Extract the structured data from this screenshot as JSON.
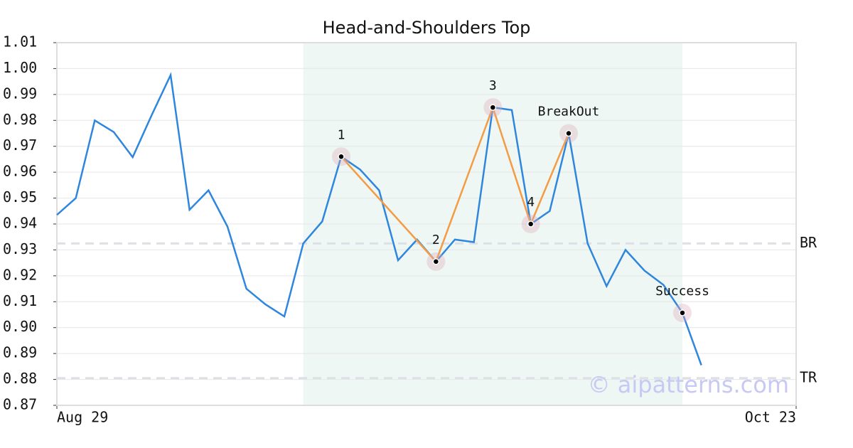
{
  "chart_data": {
    "type": "line",
    "title": "Head-and-Shoulders Top",
    "x": [
      0,
      1,
      2,
      3,
      4,
      5,
      6,
      7,
      8,
      9,
      10,
      11,
      12,
      13,
      14,
      15,
      16,
      17,
      18,
      19,
      20,
      21,
      22,
      23,
      24,
      25,
      26,
      27,
      28,
      29,
      30,
      31,
      32,
      33,
      34
    ],
    "series": [
      {
        "color": "#2e86de",
        "values": [
          0.9435,
          0.95,
          0.98,
          0.9755,
          0.9658,
          0.982,
          0.9975,
          0.9455,
          0.953,
          0.939,
          0.915,
          0.909,
          0.9043,
          0.9325,
          0.941,
          0.966,
          0.961,
          0.953,
          0.926,
          0.934,
          0.9255,
          0.934,
          0.933,
          0.985,
          0.984,
          0.94,
          0.945,
          0.975,
          0.9325,
          0.916,
          0.93,
          0.922,
          0.9165,
          0.9057,
          0.8855
        ]
      }
    ],
    "xlim": [
      0,
      39
    ],
    "xticks": [
      {
        "value": 0,
        "label": "Aug 29"
      },
      {
        "value": 39,
        "label": "Oct 23"
      }
    ],
    "ylim": [
      0.87,
      1.01
    ],
    "yticks": [
      0.87,
      0.88,
      0.89,
      {
        "value": 0.9,
        "label": "0.90"
      },
      0.91,
      0.92,
      0.93,
      0.94,
      0.95,
      0.96,
      0.97,
      0.98,
      0.99,
      {
        "value": 1.0,
        "label": "1.00"
      },
      1.01
    ],
    "grid": true,
    "highlight": {
      "x": [
        13,
        33
      ],
      "color": "#eef7f3"
    },
    "pattern": {
      "color": "#f39c45",
      "points": [
        {
          "label": "1",
          "x": 15,
          "y": 0.966
        },
        {
          "label": "2",
          "x": 20,
          "y": 0.9255
        },
        {
          "label": "3",
          "x": 23,
          "y": 0.985
        },
        {
          "label": "4",
          "x": 25,
          "y": 0.94
        },
        {
          "label": "BreakOut",
          "x": 27,
          "y": 0.975
        }
      ]
    },
    "success": {
      "label": "Success",
      "x": 33,
      "y": 0.9057
    },
    "levels": [
      {
        "label": "BR",
        "value": 0.9325
      },
      {
        "label": "TR",
        "value": 0.8805
      }
    ],
    "watermark": "© aipatterns.com"
  }
}
